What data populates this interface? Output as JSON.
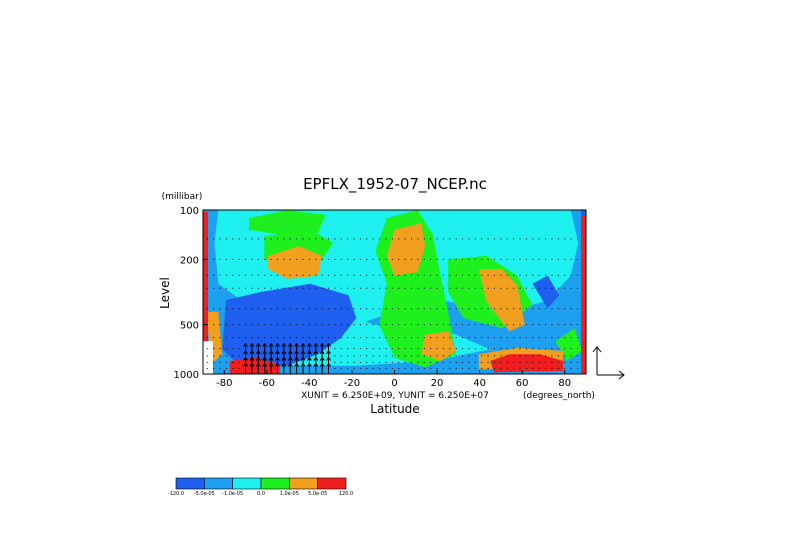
{
  "chart_data": {
    "type": "heatmap",
    "title": "EPFLX_1952-07_NCEP.nc",
    "xlabel": "Latitude",
    "ylabel": "Level",
    "y_units": "(millibar)",
    "x_units": "(degrees_north)",
    "x_range": [
      -90,
      90
    ],
    "y_range": [
      1000,
      100
    ],
    "y_scale": "log",
    "x_ticks": [
      "-80",
      "-60",
      "-40",
      "-20",
      "0",
      "20",
      "40",
      "60",
      "80"
    ],
    "x_tick_values": [
      -80,
      -60,
      -40,
      -20,
      0,
      20,
      40,
      60,
      80
    ],
    "y_ticks": [
      "100",
      "200",
      "500",
      "1000"
    ],
    "y_tick_values": [
      100,
      200,
      500,
      1000
    ],
    "vector_units": "XUNIT = 6.250E+09, YUNIT = 6.250E+07",
    "colorbar": {
      "labels": [
        "-120.0",
        "-5.0e-05",
        "-1.0e-05",
        "0.0",
        "1.0e-05",
        "5.0e-05",
        "120.0"
      ],
      "colors": [
        "#1e5ff0",
        "#1ea0f0",
        "#1ef0f0",
        "#1ef01e",
        "#f0a01e",
        "#f01e1e"
      ]
    },
    "contour_regions": [
      {
        "level": 1,
        "color": "#1ea0f0",
        "note": "background over most of field"
      },
      {
        "level": 0,
        "color": "#1e5ff0",
        "note": "strongly negative, southern mid-lower troposphere"
      },
      {
        "level": 2,
        "color": "#1ef0f0",
        "note": "weakly negative"
      },
      {
        "level": 3,
        "color": "#1ef01e",
        "note": "weakly positive"
      },
      {
        "level": 4,
        "color": "#f0a01e",
        "note": "positive"
      },
      {
        "level": 5,
        "color": "#f01e1e",
        "note": "strongly positive near boundaries"
      }
    ]
  }
}
